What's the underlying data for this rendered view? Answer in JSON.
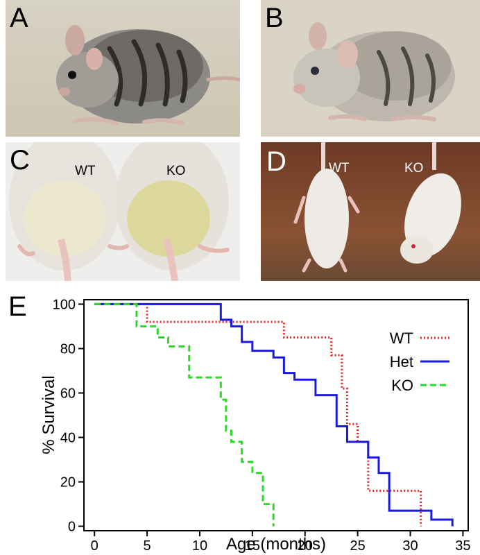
{
  "panels": {
    "A": {
      "letter": "A"
    },
    "B": {
      "letter": "B"
    },
    "C": {
      "letter": "C",
      "label_wt": "WT",
      "label_ko": "KO"
    },
    "D": {
      "letter": "D",
      "label_wt": "WT",
      "label_ko": "KO"
    },
    "E": {
      "letter": "E"
    }
  },
  "colors": {
    "WT": "#e8231f",
    "Het": "#1a1adb",
    "KO": "#2ed62a"
  },
  "chart_data": {
    "type": "line",
    "step": true,
    "xlabel": "Age (months)",
    "ylabel": "% Survival",
    "xlim": [
      -1,
      35.5
    ],
    "ylim": [
      -2,
      102
    ],
    "xticks": [
      0,
      5,
      10,
      15,
      20,
      25,
      30,
      35
    ],
    "yticks": [
      0,
      20,
      40,
      60,
      80,
      100
    ],
    "legend_placement": "top-right",
    "series": [
      {
        "name": "WT",
        "style": "dotted",
        "x": [
          0,
          5,
          18,
          22.5,
          23.5,
          24,
          25,
          26,
          31
        ],
        "y": [
          100,
          92,
          85,
          77,
          62,
          46,
          38,
          16,
          0
        ]
      },
      {
        "name": "Het",
        "style": "solid",
        "x": [
          0,
          12,
          13,
          14,
          15,
          17,
          18,
          19,
          21,
          23,
          24,
          26,
          27,
          28,
          32,
          34
        ],
        "y": [
          100,
          93,
          90,
          83,
          79,
          76,
          69,
          66,
          59,
          45,
          38,
          31,
          24,
          7,
          3,
          0
        ]
      },
      {
        "name": "KO",
        "style": "dashed",
        "x": [
          0,
          4,
          6,
          7,
          9,
          12,
          12.5,
          13,
          14,
          15,
          16,
          17
        ],
        "y": [
          100,
          90,
          85,
          81,
          67,
          57,
          43,
          38,
          29,
          24,
          10,
          0
        ]
      }
    ]
  }
}
